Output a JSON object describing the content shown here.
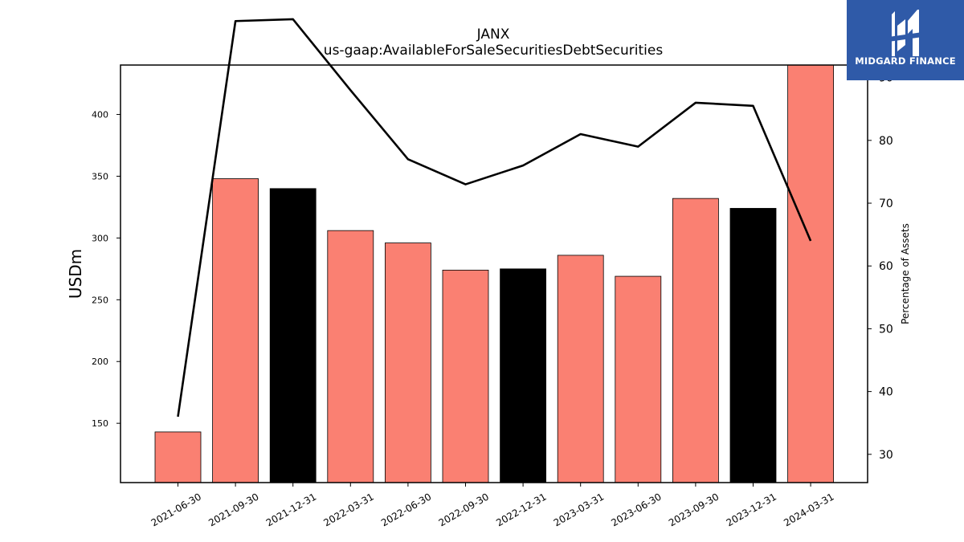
{
  "logo": {
    "text": "MIDGARD FINANCE",
    "color": "#2f5aa8"
  },
  "chart_data": {
    "type": "bar",
    "title": "JANX",
    "subtitle": "us-gaap:AvailableForSaleSecuritiesDebtSecurities",
    "ylabel": "USDm",
    "y2label": "Percentage of Assets",
    "categories": [
      "2021-06-30",
      "2021-09-30",
      "2021-12-31",
      "2022-03-31",
      "2022-06-30",
      "2022-09-30",
      "2022-12-31",
      "2023-03-31",
      "2023-06-30",
      "2023-09-30",
      "2023-12-31",
      "2024-03-31"
    ],
    "bar_series": {
      "values": [
        143,
        348,
        340,
        306,
        296,
        274,
        275,
        286,
        269,
        332,
        324,
        440
      ],
      "colors": [
        "#fa8072",
        "#fa8072",
        "#000000",
        "#fa8072",
        "#fa8072",
        "#fa8072",
        "#000000",
        "#fa8072",
        "#fa8072",
        "#fa8072",
        "#000000",
        "#fa8072"
      ]
    },
    "line_series": {
      "values": [
        36,
        99,
        99.3,
        88,
        77,
        73,
        76,
        81,
        79,
        86,
        85.5,
        64
      ],
      "color": "#000000"
    },
    "ylim": [
      102,
      440
    ],
    "y2lim": [
      25.5,
      92
    ],
    "yticks": [
      150,
      200,
      250,
      300,
      350,
      400
    ],
    "y2ticks": [
      30,
      40,
      50,
      60,
      70,
      80,
      90
    ],
    "grid": false
  }
}
